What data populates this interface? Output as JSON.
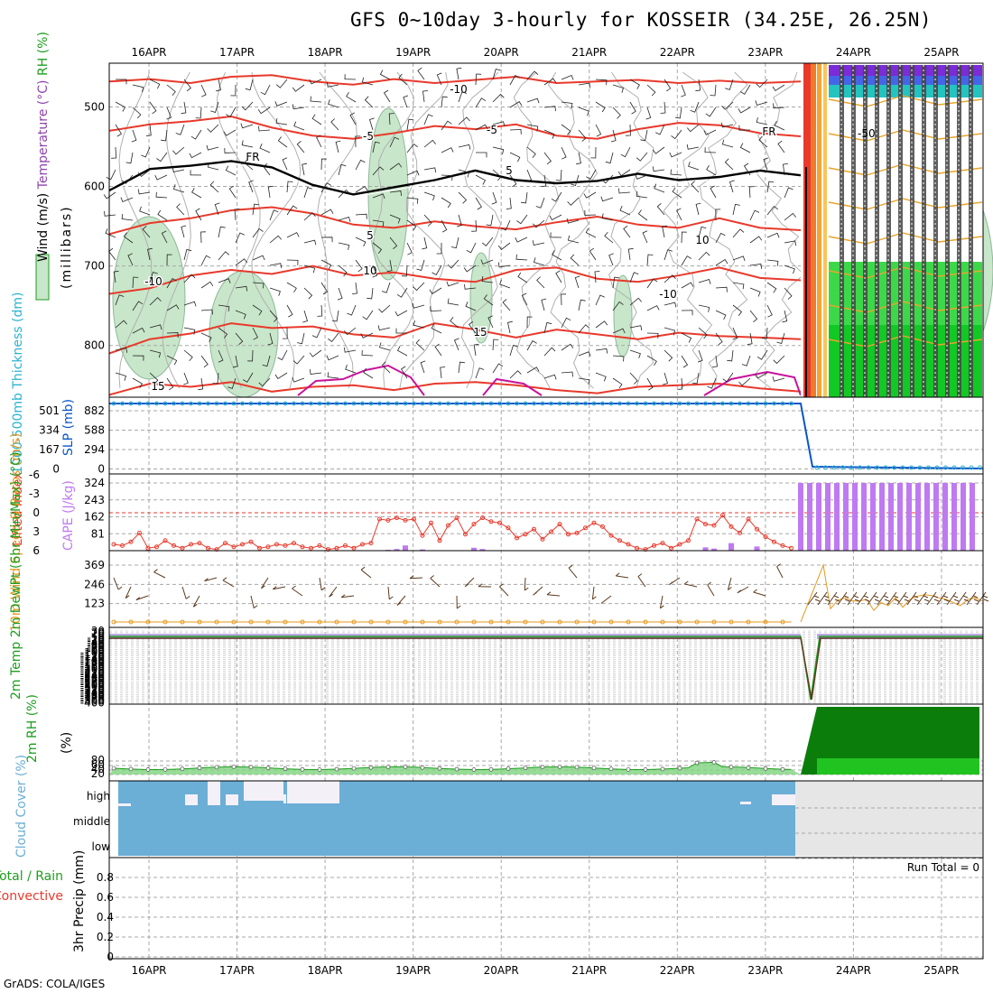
{
  "title": "GFS 0~10day 3-hourly for KOSSEIR (34.25E, 26.25N)",
  "credit": "GrADS: COLA/IGES",
  "colors": {
    "temperature": "#e8392b",
    "freezing": "#000000",
    "rh_shade": "#c8e6c9",
    "slp": "#0a56c8",
    "thickness": "#2bb3cf",
    "cape": "#bf7af2",
    "lifted_index": "#e8392b",
    "wind_speed": "#e8971a",
    "barbs": "#5b3a1e",
    "rh2m": "#1e9e1e",
    "rh2m_fill": "#0b7d0b",
    "cloud": "#6baed6",
    "cloud_missing": "#e6e6e6",
    "precip_total": "#1e9e1e",
    "precip_conv": "#e8392b"
  },
  "chart_data": [
    {
      "panel": "upper-air",
      "type": "contour",
      "dates": [
        "16APR",
        "17APR",
        "18APR",
        "19APR",
        "20APR",
        "21APR",
        "22APR",
        "23APR",
        "24APR",
        "25APR"
      ],
      "y_label": "(millibars)",
      "y_ticks": [
        "500",
        "600",
        "700",
        "800"
      ],
      "legend": [
        {
          "name": "Wind (m/s)",
          "color": "#000000"
        },
        {
          "name": "Temperature (°C)",
          "color": "#e8392b"
        },
        {
          "name": "RH (%)",
          "color": "#1e9e1e"
        }
      ],
      "contour_labels": [
        "-10",
        "-5",
        "-5",
        "FR",
        "FR",
        "5",
        "5",
        "10",
        "10",
        "-10",
        "15",
        "15",
        "-10",
        "10",
        "-10",
        "-10",
        "-10",
        "10",
        "10"
      ],
      "isotherms": [
        {
          "label": "-10",
          "pressure": [
            468,
            465,
            470,
            462,
            460,
            468,
            472,
            465,
            470,
            466,
            462,
            470,
            468,
            466,
            470,
            467,
            470,
            468
          ]
        },
        {
          "label": "-5",
          "pressure": [
            530,
            522,
            518,
            512,
            526,
            536,
            540,
            533,
            524,
            528,
            522,
            536,
            540,
            528,
            520,
            523,
            533,
            537
          ]
        },
        {
          "label": "FR",
          "pressure": [
            605,
            578,
            574,
            568,
            576,
            598,
            610,
            601,
            592,
            580,
            592,
            596,
            593,
            584,
            592,
            588,
            580,
            586
          ]
        },
        {
          "label": "5",
          "pressure": [
            660,
            646,
            640,
            630,
            626,
            634,
            648,
            652,
            644,
            650,
            654,
            645,
            638,
            648,
            652,
            640,
            652,
            655
          ]
        },
        {
          "label": "10",
          "pressure": [
            735,
            728,
            712,
            705,
            710,
            700,
            712,
            708,
            716,
            720,
            705,
            702,
            716,
            720,
            712,
            702,
            715,
            718
          ]
        },
        {
          "label": "15",
          "pressure": [
            810,
            792,
            785,
            772,
            778,
            776,
            786,
            790,
            772,
            780,
            790,
            780,
            786,
            792,
            784,
            788,
            790,
            792
          ]
        },
        {
          "label": "",
          "pressure": [
            862,
            848,
            852,
            846,
            858,
            852,
            850,
            856,
            848,
            846,
            850,
            856,
            860,
            852,
            850,
            848,
            854,
            858
          ]
        }
      ]
    },
    {
      "panel": "slp-thickness",
      "type": "line",
      "y_label_left": "1000-500mb Thickness (dm)",
      "y_label_right": "SLP (mb)",
      "ticks_thickness": [
        "501",
        "334",
        "167",
        "0"
      ],
      "ticks_slp": [
        "882",
        "588",
        "294",
        "0"
      ],
      "slp_before": 882,
      "slp_after": 0
    },
    {
      "panel": "cape-li",
      "type": "bar",
      "y_label_left": "Lifted Index",
      "y_label_right": "CAPE (J/kg)",
      "ticks_li": [
        "-6",
        "-3",
        "0",
        "3",
        "6"
      ],
      "ticks_cape": [
        "324",
        "243",
        "162",
        "81"
      ],
      "cape": [
        0,
        0,
        0,
        0,
        5,
        0,
        0,
        0,
        0,
        0,
        0,
        0,
        0,
        0,
        0,
        0,
        0,
        0,
        0,
        0,
        0,
        0,
        0,
        0,
        0,
        0,
        0,
        0,
        0,
        0,
        0,
        0,
        4,
        8,
        25,
        0,
        6,
        0,
        0,
        0,
        0,
        0,
        14,
        8,
        0,
        0,
        0,
        0,
        0,
        0,
        0,
        0,
        0,
        0,
        0,
        0,
        0,
        0,
        0,
        0,
        0,
        0,
        0,
        0,
        0,
        0,
        0,
        0,
        0,
        16,
        10,
        0,
        36,
        0,
        0,
        20,
        0,
        0,
        0,
        0,
        0,
        0,
        0,
        0,
        0,
        0,
        0,
        0,
        0,
        0,
        0,
        0,
        0,
        0,
        0,
        0,
        0,
        0,
        0,
        0,
        0,
        0,
        0,
        0,
        0,
        0,
        0,
        0,
        0,
        0,
        0,
        0,
        0,
        0
      ],
      "cape_after": 324,
      "lifted_index": [
        5,
        5.2,
        4.6,
        3.2,
        5.6,
        5.4,
        4.4,
        5.2,
        5.6,
        5,
        4.8,
        5.6,
        5.8,
        4.8,
        5.4,
        5,
        4.6,
        5.6,
        5.4,
        5,
        5.2,
        4.8,
        5.4,
        5.6,
        5.2,
        5.8,
        5.6,
        5.2,
        5.6,
        5,
        4.8,
        1,
        1.2,
        0.8,
        1.2,
        1,
        3.6,
        1.6,
        4.4,
        2,
        0.8,
        3.4,
        1.8,
        0.8,
        1.4,
        1.6,
        2.4,
        4,
        3.4,
        2.6,
        4.2,
        3,
        1.8,
        3.4,
        3.2,
        2.4,
        1.6,
        2.2,
        3.6,
        4.4,
        5,
        5.6,
        5.8,
        5.2,
        4.8,
        5.6,
        5,
        4.4,
        1,
        1.8,
        2,
        0.4,
        2.2,
        3.2,
        1,
        2.6,
        3.8,
        4.6,
        5.2,
        5.6,
        5
      ]
    },
    {
      "panel": "wind10m",
      "type": "line",
      "y_label": "10m Wind Speed & Barbs (m/s)",
      "y_ticks": [
        "369",
        "246",
        "123"
      ],
      "speed_before": 6,
      "speed_peak": 369,
      "speed_after": [
        369,
        90,
        145,
        160,
        140,
        140,
        150,
        80,
        130,
        110,
        160,
        100,
        150,
        170,
        180,
        175,
        160,
        150,
        130,
        110,
        150,
        160,
        140
      ]
    },
    {
      "panel": "temp2m",
      "type": "line",
      "y_label": "2m Temp 2m DewPt (6hr Min/Max) (°C)",
      "y_ticks": [
        "30",
        "20",
        "10",
        "0",
        "-10",
        "-20",
        "-30",
        "-40",
        "-50",
        "-60",
        "-70",
        "-80",
        "-90",
        "-100",
        "-110",
        "-120",
        "-130",
        "-140",
        "-150",
        "-160",
        "-170",
        "-180",
        "-190",
        "-200",
        "-210",
        "-220",
        "-230",
        "-240",
        "-250",
        "-260",
        "-270",
        "-280",
        "-290",
        "-300",
        "-310",
        "-320",
        "-330",
        "-340",
        "-350",
        "-360",
        "-370",
        "-380",
        "-390",
        "-400"
      ],
      "temp_before": 22,
      "dip_min": -400
    },
    {
      "panel": "rh2m",
      "type": "area",
      "y_label": "2m RH (%)",
      "y_ticks": [
        "80",
        "60",
        "40",
        "20"
      ],
      "rh_before": 45,
      "rh_after_top_fraction": 0.96
    },
    {
      "panel": "cloud",
      "type": "heatmap",
      "y_label": "Cloud Cover (%)",
      "levels": [
        "high",
        "middle",
        "low"
      ]
    },
    {
      "panel": "precip",
      "type": "bar",
      "y_label": "3hr Precip (mm)",
      "legend": [
        "Total / Rain",
        "Convective"
      ],
      "y_ticks": [
        "0.8",
        "0.6",
        "0.4",
        "0.2",
        "0"
      ],
      "run_total": "Run Total = 0",
      "values": []
    }
  ]
}
